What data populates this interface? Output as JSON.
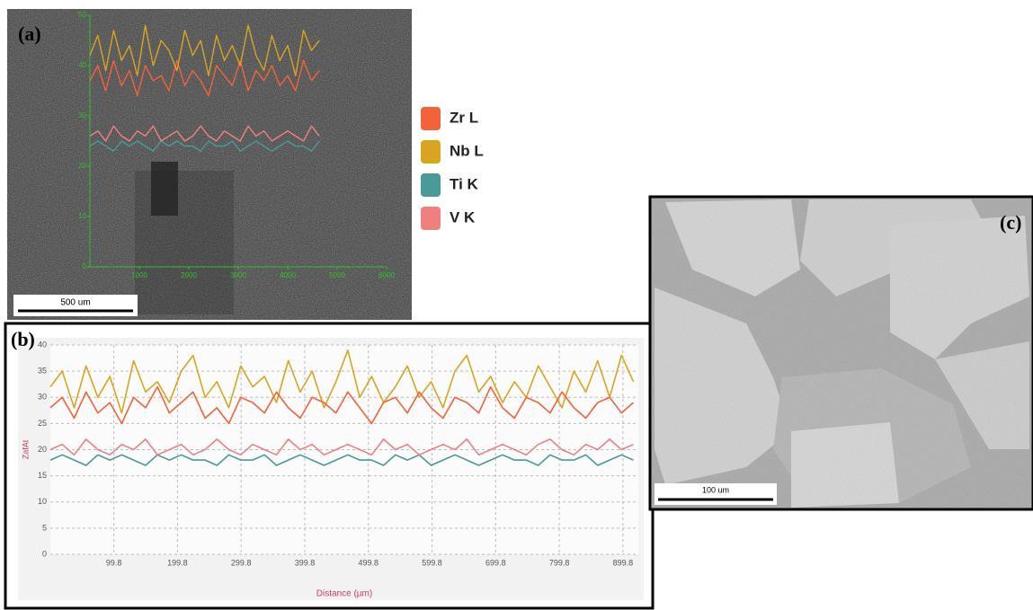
{
  "panels": {
    "a": {
      "label": "(a)",
      "scale_bar": "500 um"
    },
    "b": {
      "label": "(b)"
    },
    "c": {
      "label": "(c)",
      "scale_bar": "100 um"
    }
  },
  "chart_data": [
    {
      "type": "line",
      "legend": "right",
      "grid": false,
      "axis_color": "#2fbf2f",
      "x": [
        0,
        160,
        320,
        480,
        640,
        800,
        960,
        1120,
        1280,
        1440,
        1600,
        1760,
        1920,
        2080,
        2240,
        2400,
        2560,
        2720,
        2880,
        3040,
        3200,
        3360,
        3520,
        3680,
        3840,
        4000,
        4160,
        4320,
        4480,
        4640
      ],
      "xlim": [
        0,
        6000
      ],
      "xticks": [
        1000,
        2000,
        3000,
        4000,
        5000,
        6000
      ],
      "ylim": [
        0,
        50
      ],
      "yticks": [
        0,
        10,
        20,
        30,
        40,
        50
      ],
      "series": [
        {
          "name": "Zr L",
          "color": "#f4623a",
          "values": [
            37,
            40,
            35,
            41,
            36,
            39,
            34,
            40,
            37,
            38,
            35,
            41,
            36,
            39,
            37,
            34,
            40,
            38,
            36,
            41,
            35,
            39,
            37,
            40,
            36,
            38,
            35,
            41,
            37,
            39
          ]
        },
        {
          "name": "Nb L",
          "color": "#d9a520",
          "values": [
            42,
            46,
            39,
            47,
            41,
            44,
            38,
            48,
            40,
            45,
            43,
            39,
            47,
            42,
            45,
            38,
            46,
            41,
            44,
            40,
            48,
            42,
            39,
            46,
            41,
            44,
            38,
            47,
            43,
            45
          ]
        },
        {
          "name": "Ti K",
          "color": "#4a9a98",
          "values": [
            24,
            25,
            24,
            23,
            25,
            24,
            25,
            24,
            23,
            25,
            24,
            25,
            24,
            24,
            23,
            25,
            24,
            24,
            25,
            23,
            24,
            25,
            24,
            23,
            24,
            25,
            24,
            24,
            23,
            25
          ]
        },
        {
          "name": "V  K",
          "color": "#f08080",
          "values": [
            26,
            27,
            25,
            28,
            26,
            25,
            27,
            26,
            28,
            25,
            26,
            27,
            25,
            26,
            28,
            26,
            25,
            27,
            26,
            25,
            28,
            26,
            27,
            25,
            26,
            27,
            26,
            25,
            28,
            26
          ]
        }
      ]
    },
    {
      "type": "line",
      "grid": true,
      "x_label": "Distance (µm)",
      "y_label": "ZafAt",
      "x": [
        0,
        18.7,
        37.4,
        56.1,
        74.8,
        93.5,
        112.2,
        130.9,
        149.6,
        168.3,
        187,
        205.7,
        224.4,
        243.1,
        261.8,
        280.5,
        299.2,
        317.9,
        336.6,
        355.3,
        374,
        392.7,
        411.4,
        430.1,
        448.8,
        467.5,
        486.2,
        504.9,
        523.6,
        542.3,
        561,
        579.7,
        598.4,
        617.1,
        635.8,
        654.5,
        673.2,
        691.9,
        710.6,
        729.3,
        748,
        766.7,
        785.4,
        804.1,
        822.8,
        841.5,
        860.2,
        878.9,
        897.6,
        916.3
      ],
      "xlim": [
        0,
        924
      ],
      "xticks": [
        99.8,
        199.8,
        299.8,
        399.8,
        499.8,
        599.8,
        699.8,
        799.8,
        899.8
      ],
      "ylim": [
        0,
        40
      ],
      "yticks": [
        0,
        5,
        10,
        15,
        20,
        25,
        30,
        35,
        40
      ],
      "series": [
        {
          "color": "#d9a520",
          "values": [
            32,
            35,
            28,
            36,
            30,
            34,
            27,
            37,
            31,
            33,
            29,
            35,
            38,
            30,
            33,
            28,
            36,
            32,
            34,
            29,
            37,
            31,
            35,
            28,
            33,
            39,
            30,
            34,
            29,
            32,
            36,
            30,
            33,
            28,
            35,
            38,
            31,
            34,
            29,
            33,
            30,
            36,
            32,
            28,
            35,
            31,
            37,
            30,
            38,
            33
          ]
        },
        {
          "color": "#f4623a",
          "values": [
            28,
            30,
            26,
            31,
            27,
            29,
            25,
            30,
            28,
            32,
            27,
            29,
            31,
            26,
            28,
            25,
            30,
            29,
            27,
            31,
            28,
            26,
            30,
            29,
            27,
            31,
            28,
            25,
            29,
            30,
            27,
            31,
            28,
            26,
            30,
            29,
            27,
            32,
            28,
            26,
            30,
            29,
            27,
            31,
            28,
            26,
            29,
            30,
            27,
            29
          ]
        },
        {
          "color": "#4a9a98",
          "values": [
            18,
            19,
            18,
            17,
            19,
            18,
            19,
            18,
            17,
            19,
            18,
            19,
            18,
            18,
            17,
            19,
            18,
            18,
            19,
            17,
            18,
            19,
            18,
            17,
            18,
            19,
            18,
            18,
            17,
            19,
            18,
            19,
            17,
            18,
            19,
            18,
            17,
            18,
            19,
            18,
            18,
            17,
            19,
            18,
            18,
            19,
            17,
            18,
            19,
            18
          ]
        },
        {
          "color": "#f08080",
          "values": [
            20,
            21,
            19,
            22,
            20,
            19,
            21,
            20,
            22,
            19,
            20,
            21,
            19,
            20,
            22,
            20,
            19,
            21,
            20,
            19,
            22,
            20,
            21,
            19,
            20,
            21,
            20,
            19,
            22,
            20,
            21,
            19,
            20,
            21,
            20,
            22,
            19,
            20,
            21,
            20,
            19,
            21,
            22,
            20,
            19,
            21,
            20,
            22,
            20,
            21
          ]
        }
      ]
    }
  ]
}
